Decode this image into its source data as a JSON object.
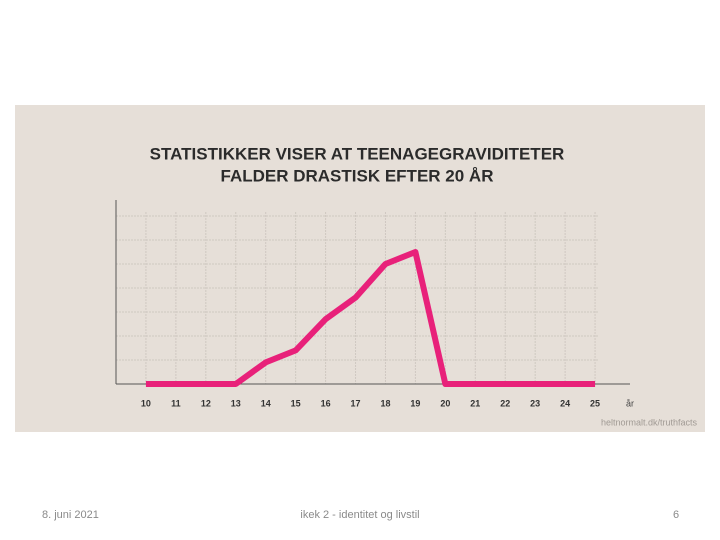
{
  "chart_data": {
    "type": "line",
    "title": [
      "STATISTIKKER VISER AT TEENAGEGRAVIDITETER",
      "FALDER DRASTISK EFTER 20 ÅR"
    ],
    "x": [
      10,
      11,
      12,
      13,
      14,
      15,
      16,
      17,
      18,
      19,
      20,
      21,
      22,
      23,
      24,
      25
    ],
    "series": [
      {
        "color": "#e8217a",
        "values": [
          0,
          0,
          0,
          0,
          0.9,
          1.4,
          2.7,
          3.6,
          5.0,
          5.5,
          0,
          0,
          0,
          0,
          0,
          0
        ]
      }
    ],
    "xlim": [
      9,
      26
    ],
    "ylim": [
      0,
      8
    ],
    "xticks": [
      10,
      11,
      12,
      13,
      14,
      15,
      16,
      17,
      18,
      19,
      20,
      21,
      22,
      23,
      24,
      25
    ],
    "xlabel": "år",
    "source": "heltnormalt.dk/truthfacts",
    "grid": true
  },
  "footer": {
    "date": "8. juni 2021",
    "center": "ikek 2 - identitet og livstil",
    "page": "6"
  }
}
